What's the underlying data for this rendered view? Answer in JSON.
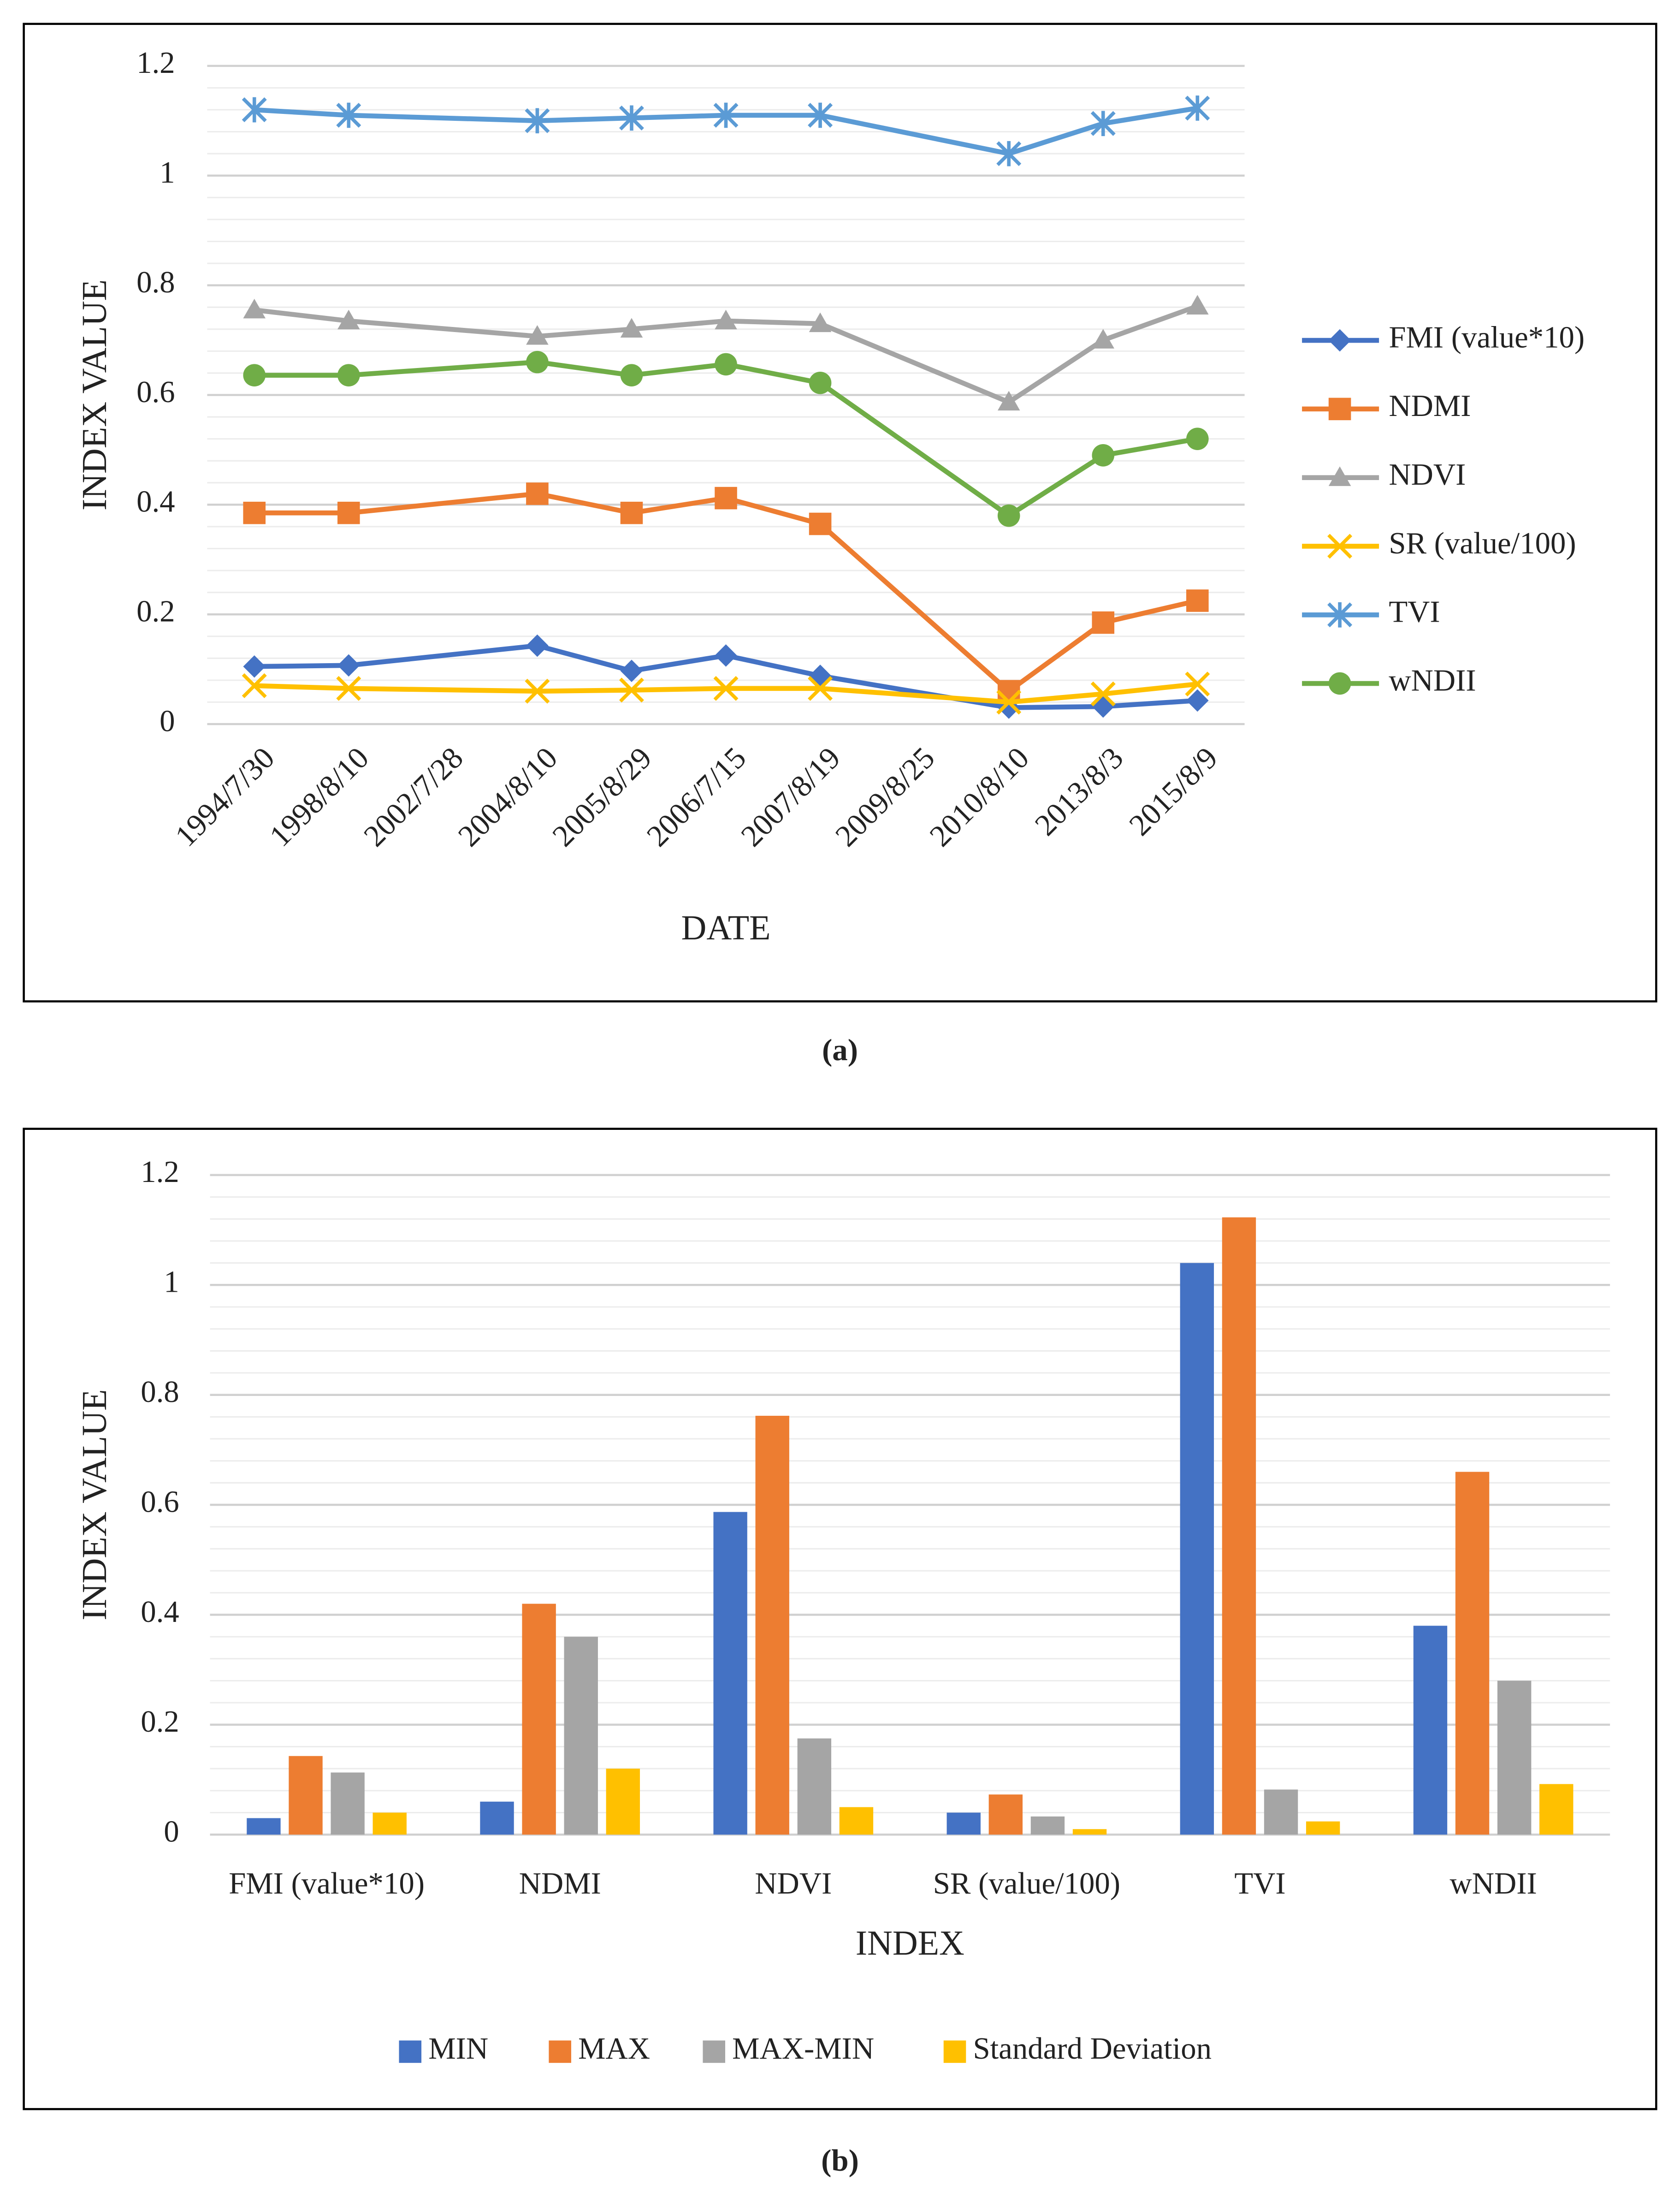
{
  "chart_data": [
    {
      "type": "line",
      "caption": "(a)",
      "ylabel": "INDEX VALUE",
      "xlabel": "DATE",
      "categories": [
        "1994/7/30",
        "1998/8/10",
        "2002/7/28",
        "2004/8/10",
        "2005/8/29",
        "2006/7/15",
        "2007/8/19",
        "2009/8/25",
        "2010/8/10",
        "2013/8/3",
        "2015/8/9"
      ],
      "series": [
        {
          "name": "FMI (value*10)",
          "color": "#4472c4",
          "marker": "diamond",
          "values": [
            0.105,
            0.107,
            null,
            0.143,
            0.097,
            0.125,
            0.088,
            null,
            0.03,
            0.032,
            0.043
          ]
        },
        {
          "name": "NDMI",
          "color": "#ed7d31",
          "marker": "square",
          "values": [
            0.385,
            0.385,
            null,
            0.42,
            0.385,
            0.412,
            0.365,
            null,
            0.06,
            0.185,
            0.225
          ]
        },
        {
          "name": "NDVI",
          "color": "#a5a5a5",
          "marker": "triangle",
          "values": [
            0.755,
            0.735,
            null,
            0.707,
            0.72,
            0.735,
            0.73,
            null,
            0.587,
            0.7,
            0.762
          ]
        },
        {
          "name": "SR (value/100)",
          "color": "#ffc000",
          "marker": "x",
          "values": [
            0.07,
            0.065,
            null,
            0.06,
            0.062,
            0.065,
            0.065,
            null,
            0.04,
            0.055,
            0.073
          ]
        },
        {
          "name": "TVI",
          "color": "#5b9bd5",
          "marker": "star",
          "values": [
            1.12,
            1.11,
            null,
            1.1,
            1.105,
            1.11,
            1.11,
            null,
            1.04,
            1.095,
            1.123
          ]
        },
        {
          "name": "wNDII",
          "color": "#70ad47",
          "marker": "circle",
          "values": [
            0.636,
            0.636,
            null,
            0.66,
            0.636,
            0.656,
            0.622,
            null,
            0.38,
            0.49,
            0.52
          ]
        }
      ],
      "ylim": [
        0,
        1.2
      ],
      "yticks": [
        0,
        0.2,
        0.4,
        0.6,
        0.8,
        1,
        1.2
      ],
      "grid": true,
      "minor_grid_divisions": 5,
      "connect_gaps": true,
      "legend": "right"
    },
    {
      "type": "bar",
      "caption": "(b)",
      "ylabel": "INDEX VALUE",
      "xlabel": "INDEX",
      "categories": [
        "FMI (value*10)",
        "NDMI",
        "NDVI",
        "SR (value/100)",
        "TVI",
        "wNDII"
      ],
      "series": [
        {
          "name": "MIN",
          "color": "#4472c4",
          "values": [
            0.03,
            0.06,
            0.587,
            0.04,
            1.04,
            0.38
          ]
        },
        {
          "name": "MAX",
          "color": "#ed7d31",
          "values": [
            0.143,
            0.42,
            0.762,
            0.073,
            1.123,
            0.66
          ]
        },
        {
          "name": "MAX-MIN",
          "color": "#a5a5a5",
          "values": [
            0.113,
            0.36,
            0.175,
            0.033,
            0.082,
            0.28
          ]
        },
        {
          "name": "Standard Deviation",
          "color": "#ffc000",
          "values": [
            0.04,
            0.12,
            0.05,
            0.01,
            0.024,
            0.092
          ]
        }
      ],
      "ylim": [
        0,
        1.2
      ],
      "yticks": [
        0,
        0.2,
        0.4,
        0.6,
        0.8,
        1,
        1.2
      ],
      "grid": true,
      "minor_grid_divisions": 5,
      "legend": "bottom"
    }
  ]
}
